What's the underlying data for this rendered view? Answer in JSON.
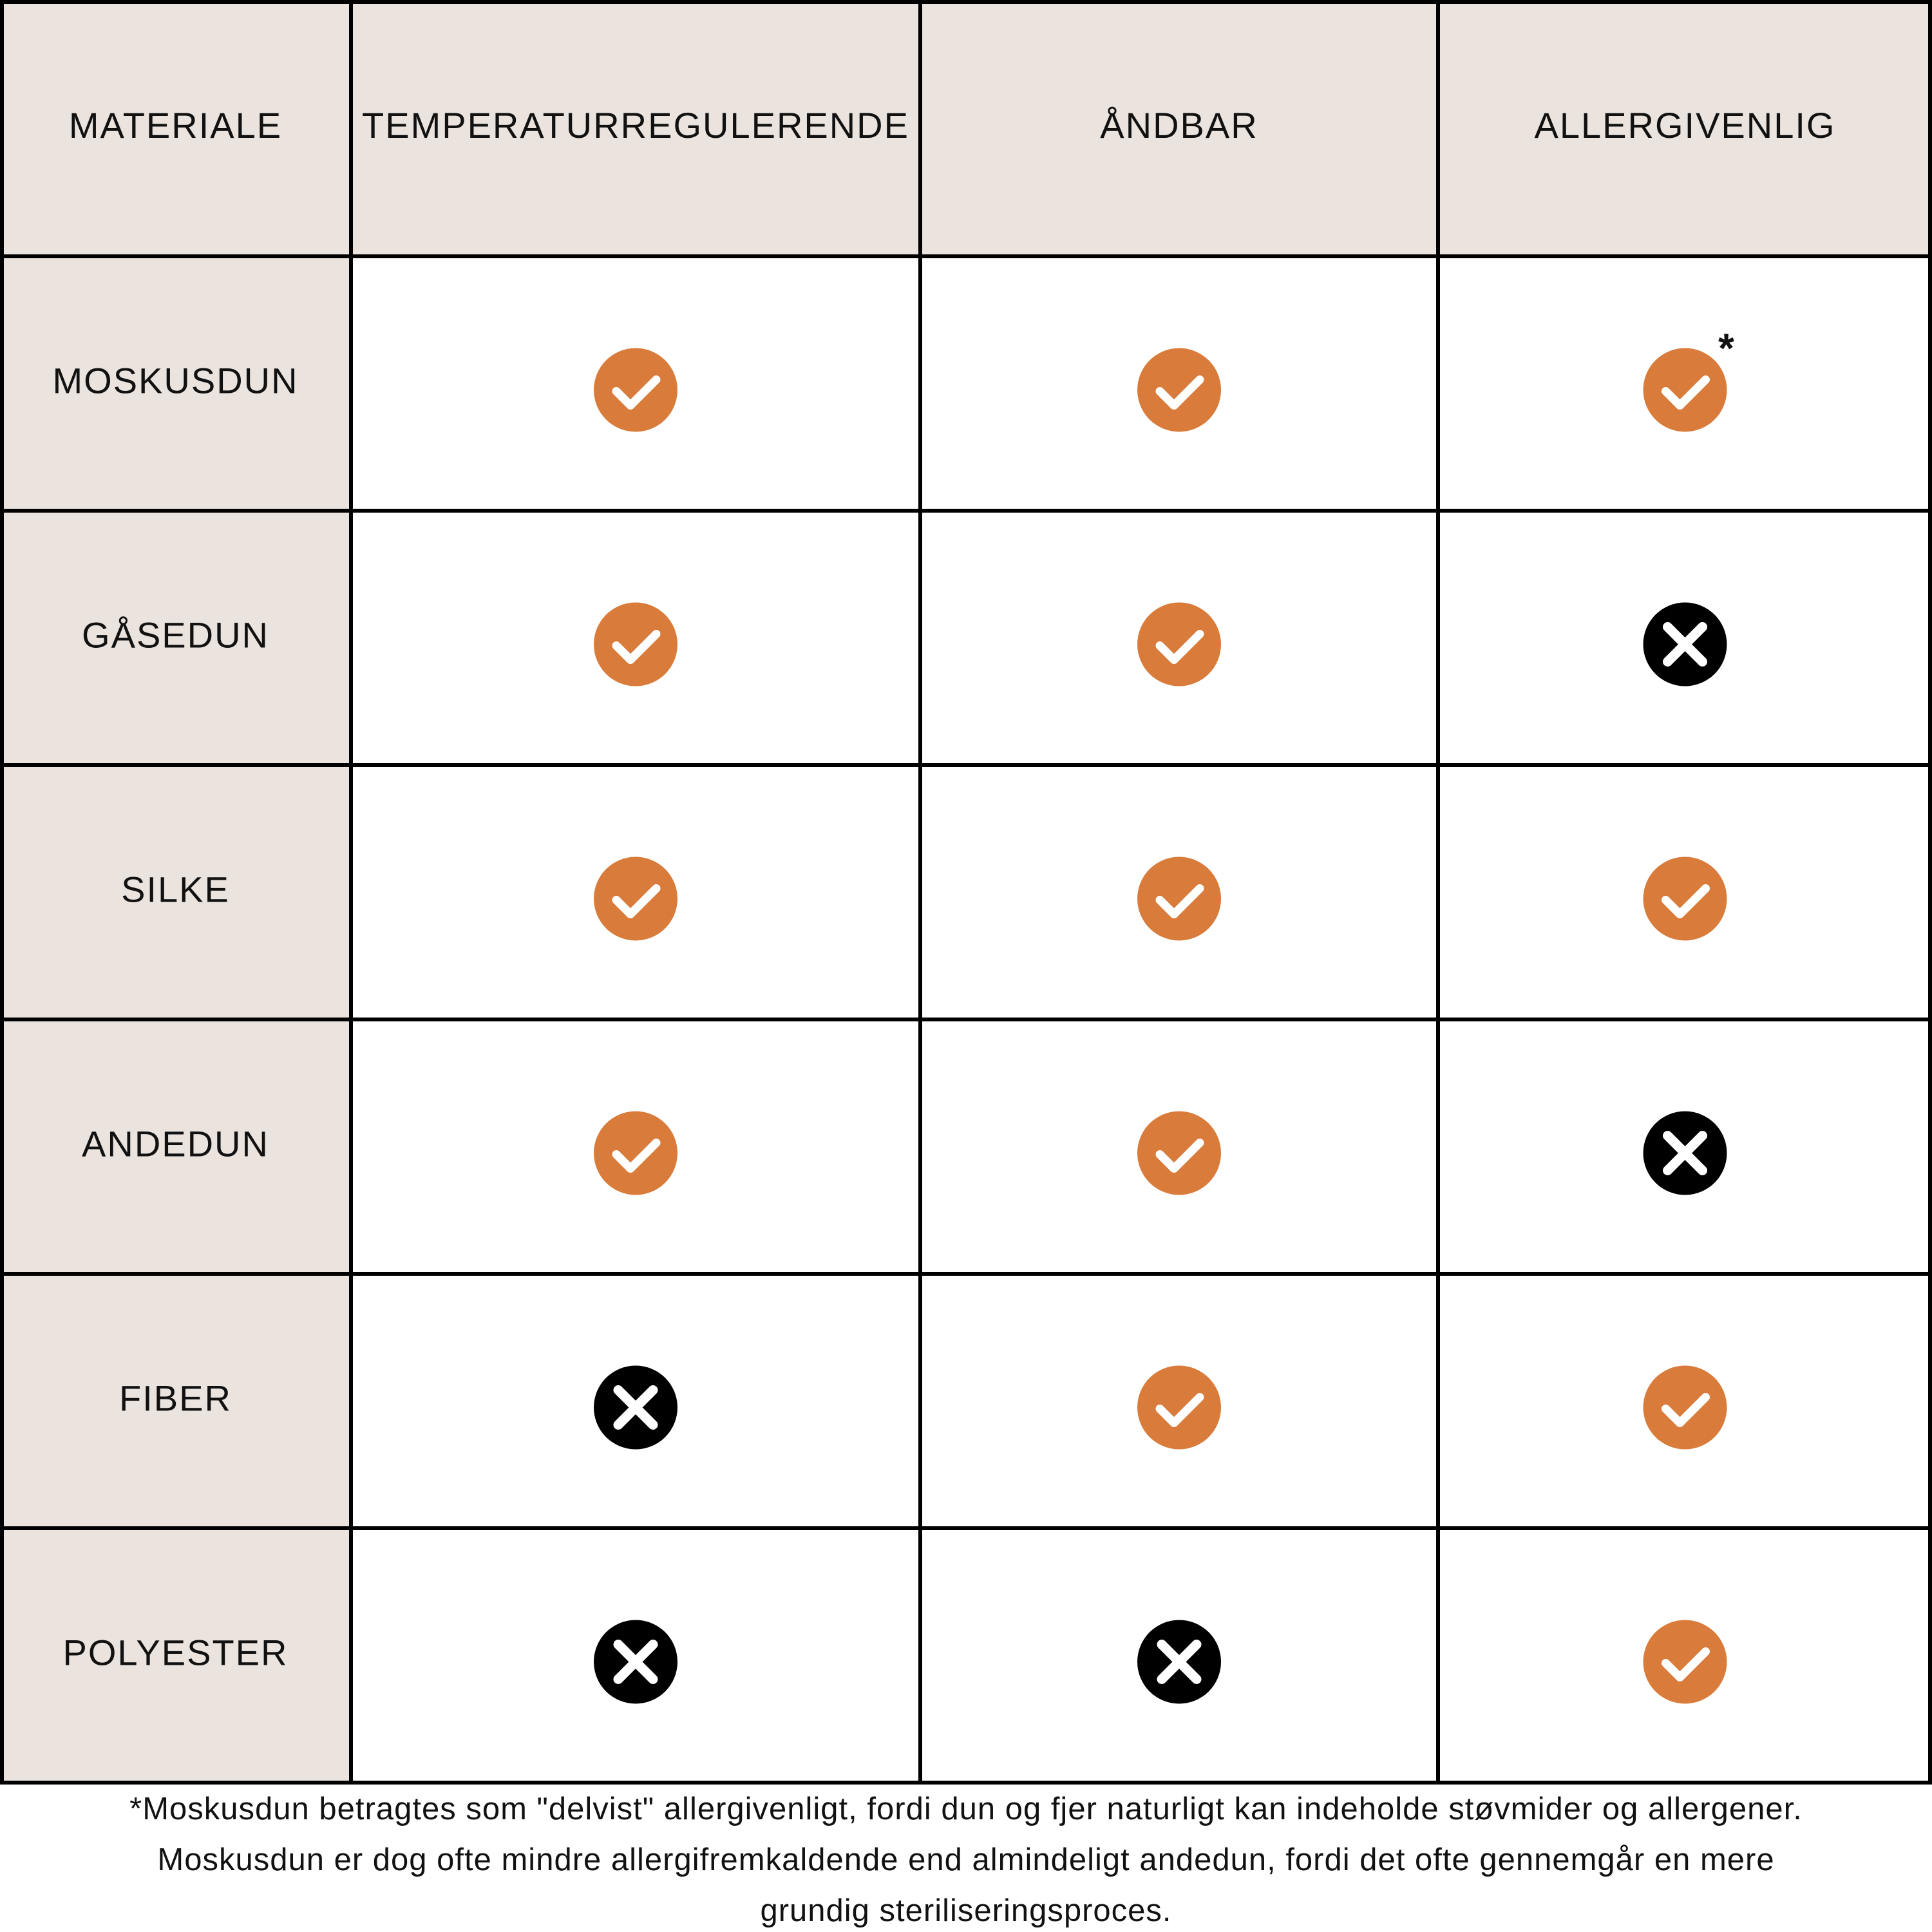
{
  "table": {
    "header": [
      "MATERIALE",
      "TEMPERATURREGULERENDE",
      "ÅNDBAR",
      "ALLERGIVENLIG"
    ],
    "rows": [
      {
        "label": "MOSKUSDUN",
        "cells": [
          true,
          true,
          true
        ],
        "note_mark": "*"
      },
      {
        "label": "GÅSEDUN",
        "cells": [
          true,
          true,
          false
        ]
      },
      {
        "label": "SILKE",
        "cells": [
          true,
          true,
          true
        ]
      },
      {
        "label": "ANDEDUN",
        "cells": [
          true,
          true,
          false
        ]
      },
      {
        "label": "FIBER",
        "cells": [
          false,
          true,
          true
        ]
      },
      {
        "label": "POLYESTER",
        "cells": [
          false,
          false,
          true
        ]
      }
    ]
  },
  "footnote": [
    "*Moskusdun betragtes som \"delvist\" allergivenligt, fordi dun og fjer naturligt kan indeholde støvmider og allergener.",
    "Moskusdun er dog ofte mindre allergifremkaldende end almindeligt andedun, fordi det ofte gennemgår en mere",
    "grundig steriliseringsproces."
  ]
}
